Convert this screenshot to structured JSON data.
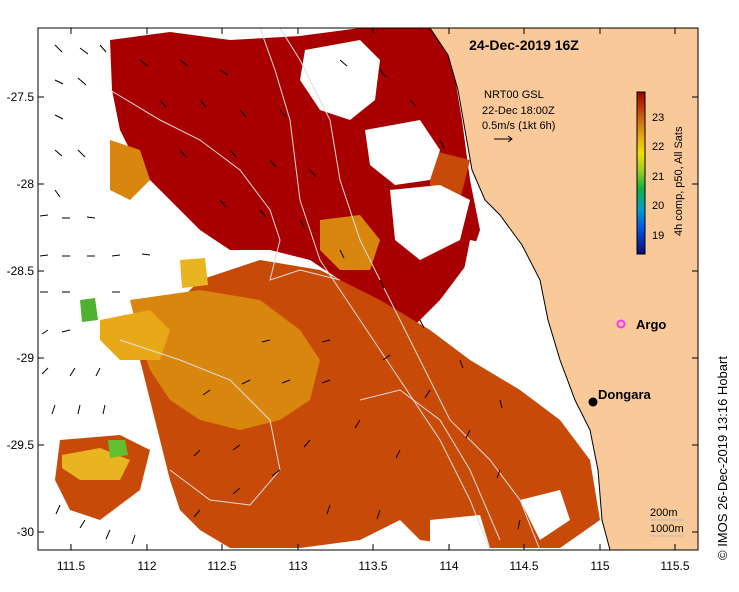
{
  "map": {
    "title": "24-Dec-2019 16Z",
    "current_info": {
      "source": "NRT00 GSL",
      "time": "22-Dec 18:00Z",
      "scale": "0.5m/s (1kt 6h)"
    },
    "colorbar": {
      "label": "4h comp, p50, All Sats",
      "ticks": [
        "23",
        "22",
        "21",
        "20",
        "19"
      ]
    },
    "places": {
      "argo": "Argo",
      "dongara": "Dongara"
    },
    "contours": {
      "shallow": "200m",
      "deep": "1000m"
    },
    "credit": "© IMOS 26-Dec-2019 13:16 Hobart",
    "axes": {
      "x_ticks": [
        "111.5",
        "112",
        "112.5",
        "113",
        "113.5",
        "114",
        "114.5",
        "115",
        "115.5"
      ],
      "y_ticks": [
        "-27.5",
        "-28",
        "-28.5",
        "-29",
        "-29.5",
        "-30"
      ]
    },
    "colors": {
      "land": "#f9c99a",
      "sst_hot": "#a80000",
      "sst_warm": "#c84a08",
      "sst_mid": "#d8860e",
      "sst_cool": "#e8b420",
      "no_data": "#ffffff",
      "argo_marker": "#ff33ff",
      "contour_lines": "#dddddd"
    }
  }
}
